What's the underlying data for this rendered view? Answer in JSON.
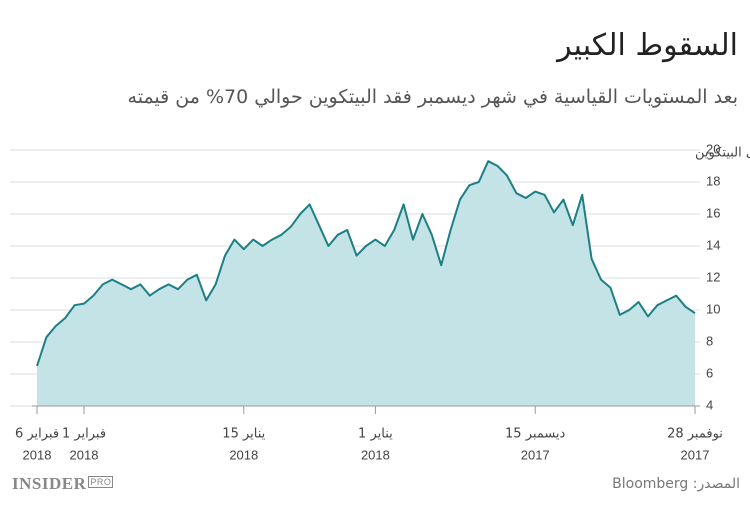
{
  "chart_data": {
    "type": "area",
    "title": "السقوط الكبير",
    "subtitle": "بعد المستويات القياسية في شهر ديسمبر فقد البيتكوين حوالي 70% من قيمته",
    "y_label": "ألف دولار على البيتكوين",
    "source": "المصدر: Bloomberg",
    "x": [
      "2017-11-28",
      "2017-11-29",
      "2017-11-30",
      "2017-12-01",
      "2017-12-02",
      "2017-12-03",
      "2017-12-04",
      "2017-12-05",
      "2017-12-06",
      "2017-12-07",
      "2017-12-08",
      "2017-12-09",
      "2017-12-10",
      "2017-12-11",
      "2017-12-12",
      "2017-12-13",
      "2017-12-14",
      "2017-12-15",
      "2017-12-16",
      "2017-12-17",
      "2017-12-18",
      "2017-12-19",
      "2017-12-20",
      "2017-12-21",
      "2017-12-22",
      "2017-12-23",
      "2017-12-24",
      "2017-12-25",
      "2017-12-26",
      "2017-12-27",
      "2017-12-28",
      "2017-12-29",
      "2017-12-30",
      "2017-12-31",
      "2018-01-01",
      "2018-01-02",
      "2018-01-03",
      "2018-01-04",
      "2018-01-05",
      "2018-01-06",
      "2018-01-07",
      "2018-01-08",
      "2018-01-09",
      "2018-01-10",
      "2018-01-11",
      "2018-01-12",
      "2018-01-13",
      "2018-01-14",
      "2018-01-15",
      "2018-01-16",
      "2018-01-17",
      "2018-01-18",
      "2018-01-19",
      "2018-01-20",
      "2018-01-21",
      "2018-01-22",
      "2018-01-23",
      "2018-01-24",
      "2018-01-25",
      "2018-01-26",
      "2018-01-27",
      "2018-01-28",
      "2018-01-29",
      "2018-01-30",
      "2018-01-31",
      "2018-02-01",
      "2018-02-02",
      "2018-02-03",
      "2018-02-04",
      "2018-02-05",
      "2018-02-06"
    ],
    "series": [
      {
        "name": "بيتكوين",
        "color": "#1d7f86",
        "fill": "#c3e3e6",
        "values": [
          9.8,
          10.2,
          10.9,
          10.6,
          10.3,
          9.6,
          10.5,
          10.0,
          9.7,
          11.4,
          11.9,
          13.2,
          17.2,
          15.3,
          16.9,
          16.1,
          17.2,
          17.4,
          17.0,
          17.3,
          18.4,
          19.0,
          19.3,
          18.0,
          17.8,
          16.9,
          15.0,
          12.8,
          14.7,
          16.0,
          14.4,
          16.6,
          15.0,
          14.0,
          14.4,
          14.0,
          13.4,
          15.0,
          14.7,
          14.0,
          15.3,
          16.6,
          16.0,
          15.2,
          14.7,
          14.4,
          14.0,
          14.4,
          13.8,
          14.4,
          13.4,
          11.6,
          10.6,
          12.2,
          11.9,
          11.3,
          11.6,
          11.3,
          10.9,
          11.6,
          11.3,
          11.6,
          11.9,
          11.6,
          10.9,
          10.4,
          10.3,
          9.5,
          9.0,
          8.3,
          6.5
        ]
      }
    ],
    "xlim": [
      "2017-11-28",
      "2018-02-06"
    ],
    "x_direction": "rtl",
    "xticks": [
      {
        "value": "2017-11-28",
        "label": "28 نوفمبر",
        "year": "2017"
      },
      {
        "value": "2017-12-15",
        "label": "15 ديسمبر",
        "year": "2017"
      },
      {
        "value": "2018-01-01",
        "label": "1 يناير",
        "year": "2018"
      },
      {
        "value": "2018-01-15",
        "label": "15 يناير",
        "year": "2018"
      },
      {
        "value": "2018-02-01",
        "label": "1 فبراير",
        "year": "2018"
      },
      {
        "value": "2018-02-06",
        "label": "6 فبراير",
        "year": "2018"
      }
    ],
    "ylim": [
      4,
      20
    ],
    "yticks": [
      4,
      6,
      8,
      10,
      12,
      14,
      16,
      18,
      20
    ],
    "grid": true
  },
  "logo": {
    "text": "INSIDER",
    "badge": "PRO"
  }
}
